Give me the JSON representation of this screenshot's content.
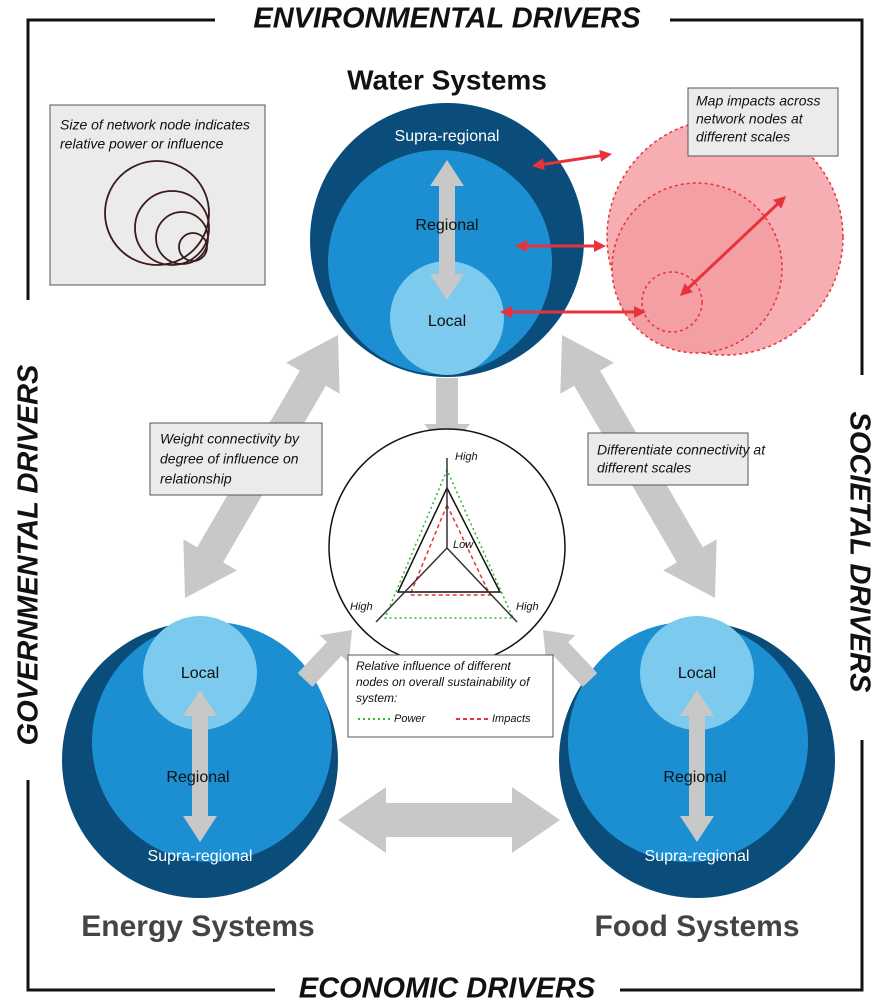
{
  "drivers": {
    "top": "ENVIRONMENTAL DRIVERS",
    "left": "GOVERNMENTAL DRIVERS",
    "right": "SOCIETAL DRIVERS",
    "bottom": "ECONOMIC DRIVERS"
  },
  "systems": {
    "water": {
      "title": "Water Systems",
      "supra": "Supra-regional",
      "regional": "Regional",
      "local": "Local"
    },
    "energy": {
      "title": "Energy Systems",
      "supra": "Supra-regional",
      "regional": "Regional",
      "local": "Local"
    },
    "food": {
      "title": "Food Systems",
      "supra": "Supra-regional",
      "regional": "Regional",
      "local": "Local"
    }
  },
  "notes": {
    "size": [
      "Size of network node indicates",
      "relative power or influence"
    ],
    "map": [
      "Map impacts across",
      "network nodes at",
      "different scales"
    ],
    "weight": [
      "Weight connectivity by",
      "degree of influence on",
      "relationship"
    ],
    "differentiate": [
      "Differentiate connectivity at",
      "different scales"
    ],
    "relative": [
      "Relative influence of different",
      "nodes on overall sustainability of",
      "system:"
    ]
  },
  "legend": {
    "power": "Power",
    "impacts": "Impacts"
  },
  "radar": {
    "top": "High",
    "left": "High",
    "right": "High",
    "center": "Low"
  }
}
